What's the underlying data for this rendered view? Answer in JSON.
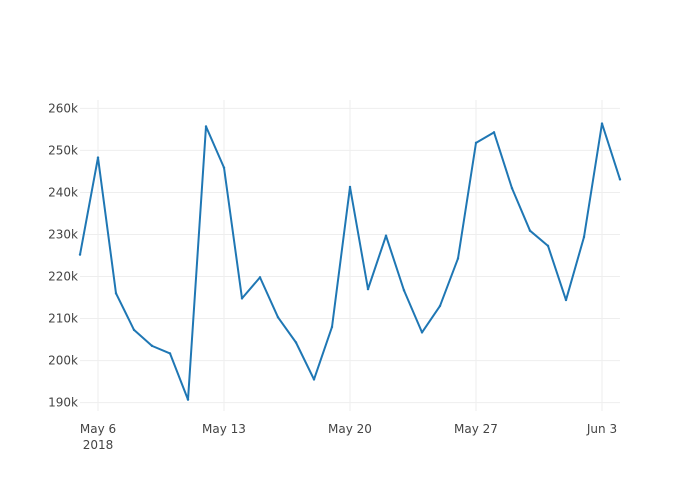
{
  "chart_data": {
    "type": "line",
    "title": "",
    "xlabel": "",
    "ylabel": "",
    "x": [
      "2018-05-05",
      "2018-05-06",
      "2018-05-07",
      "2018-05-08",
      "2018-05-09",
      "2018-05-10",
      "2018-05-11",
      "2018-05-12",
      "2018-05-13",
      "2018-05-14",
      "2018-05-15",
      "2018-05-16",
      "2018-05-17",
      "2018-05-18",
      "2018-05-19",
      "2018-05-20",
      "2018-05-21",
      "2018-05-22",
      "2018-05-23",
      "2018-05-24",
      "2018-05-25",
      "2018-05-26",
      "2018-05-27",
      "2018-05-28",
      "2018-05-29",
      "2018-05-30",
      "2018-05-31",
      "2018-06-01",
      "2018-06-02",
      "2018-06-03",
      "2018-06-04"
    ],
    "series": [
      {
        "color": "#1f77b4",
        "values": [
          225200,
          248300,
          216000,
          207300,
          203500,
          201700,
          190700,
          255700,
          245900,
          214800,
          219800,
          210300,
          204300,
          195500,
          208000,
          241300,
          217000,
          229700,
          216700,
          206700,
          213000,
          224300,
          251800,
          254300,
          241000,
          230900,
          227300,
          214400,
          229400,
          256400,
          243100
        ]
      }
    ],
    "xlim": [
      "2018-05-05",
      "2018-06-04"
    ],
    "ylim": [
      188000,
      262000
    ],
    "x_ticks": [
      {
        "date": "2018-05-06",
        "label": "May 6",
        "sublabel": "2018"
      },
      {
        "date": "2018-05-13",
        "label": "May 13"
      },
      {
        "date": "2018-05-20",
        "label": "May 20"
      },
      {
        "date": "2018-05-27",
        "label": "May 27"
      },
      {
        "date": "2018-06-03",
        "label": "Jun 3"
      }
    ],
    "y_ticks": [
      {
        "value": 190000,
        "label": "190k"
      },
      {
        "value": 200000,
        "label": "200k"
      },
      {
        "value": 210000,
        "label": "210k"
      },
      {
        "value": 220000,
        "label": "220k"
      },
      {
        "value": 230000,
        "label": "230k"
      },
      {
        "value": 240000,
        "label": "240k"
      },
      {
        "value": 250000,
        "label": "250k"
      },
      {
        "value": 260000,
        "label": "260k"
      }
    ],
    "grid": true,
    "legend": false
  }
}
